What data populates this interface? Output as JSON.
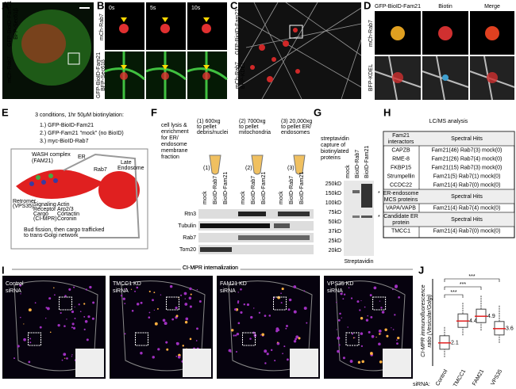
{
  "panels": {
    "A": {
      "letter": "A",
      "labels": [
        "mCh-Rab7",
        "GFP-BioID-Fam21",
        "BFP-Sec61β"
      ]
    },
    "B": {
      "letter": "B",
      "times": [
        "0s",
        "5s",
        "10s"
      ],
      "row_labels": [
        "mCh-Rab7",
        "GFP-BioID-Fam21",
        "BFP-Sec61β"
      ]
    },
    "C": {
      "letter": "C",
      "labels": [
        "mCh-Rab7",
        "GFP-BioID-Fam21",
        "BFP-KDEL"
      ]
    },
    "D": {
      "letter": "D",
      "columns": [
        "GFP-BioID-Fam21",
        "Biotin",
        "Merge"
      ],
      "row_labels": [
        "mCh-Rab7",
        "BFP-KDEL"
      ]
    },
    "E": {
      "letter": "E",
      "heading": "3 conditions, 1hr 50μM biotinylation:",
      "conditions": [
        "1.) GFP-BioID-Fam21",
        "2.) GFP-Fam21 \"mock\" (no BioID)",
        "3.) myc-BioID-Rab7"
      ],
      "diagram": {
        "wash": "WASH complex",
        "fam21": "(FAM21)",
        "er": "ER",
        "rab7": "Rab7",
        "late": [
          "Late",
          "Endosome"
        ],
        "retromer": [
          "Retromer",
          "(VPS35)"
        ],
        "cargo": [
          "Signaling",
          "Receptor",
          "Cargo",
          "(CI-MPR)"
        ],
        "actin": [
          "Actin",
          "Arp2/3",
          "Cortactin",
          "Coronin"
        ],
        "bud": [
          "Bud fission, then cargo trafficked",
          "to trans-Golgi network"
        ]
      }
    },
    "F": {
      "letter": "F",
      "lysis": [
        "cell lysis &",
        "enrichment",
        "for ER/",
        "endosome",
        "membrane",
        "fraction"
      ],
      "spins": [
        [
          "(1) 600xg",
          "to pellet",
          "debris/nuclei"
        ],
        [
          "(2) 7000xg",
          "to pellet",
          "mitochondria"
        ],
        [
          "(3) 20,000xg",
          "to pellet ER/",
          "endosomes"
        ]
      ],
      "tubes": [
        "(1)",
        "(2)",
        "(3)"
      ],
      "lanes": [
        "mock",
        "BioID-Rab7",
        "BioID-Fam21"
      ],
      "blots": [
        "Rtn3",
        "Tubulin",
        "Rab7",
        "Tom20"
      ]
    },
    "G": {
      "letter": "G",
      "capture": [
        "streptavidin",
        "capture of",
        "biotinylated",
        "proteins"
      ],
      "lanes": [
        "mock",
        "BioID-Rab7",
        "BioID-Fam21"
      ],
      "markers": [
        "250kD",
        "150kD",
        "100kD",
        "75kD",
        "50kD",
        "37kD",
        "25kD",
        "20kD"
      ],
      "stars": [
        "*",
        "*"
      ],
      "blot": "Streptavidin"
    },
    "H": {
      "letter": "H",
      "title": "LC/MS analysis",
      "sections": [
        {
          "header": [
            [
              "Fam21",
              "interactors"
            ],
            "Spectral Hits"
          ],
          "rows": [
            [
              "CAPZB",
              "Fam21(46) Rab7(3) mock(0)"
            ],
            [
              "RME-8",
              "Fam21(26) Rab7(4) mock(0)"
            ],
            [
              "FKBP15",
              "Fam21(15) Rab7(3) mock(0)"
            ],
            [
              "Strumpellin",
              "Fam21(5) Rab7(1) mock(0)"
            ],
            [
              "CCDC22",
              "Fam21(4) Rab7(0) mock(0)"
            ]
          ]
        },
        {
          "header": [
            [
              "ER-endosome",
              "MCS proteins"
            ],
            "Spectral Hits"
          ],
          "rows": [
            [
              "VAPA/VAPB",
              "Fam21(4) Rab7(4) mock(0)"
            ]
          ]
        },
        {
          "header": [
            [
              "Candidate ER",
              "protein"
            ],
            "Spectral Hits"
          ],
          "rows": [
            [
              "TMCC1",
              "Fam21(4)  Rab7(0) mock(0)"
            ]
          ]
        }
      ]
    },
    "I": {
      "letter": "I",
      "title": "CI-MPR internalization",
      "conditions": [
        [
          "Control",
          "siRNA"
        ],
        [
          "TMCC1 KD",
          "siRNA"
        ],
        [
          "FAM21 KD",
          "siRNA"
        ],
        [
          "VPS35 KD",
          "siRNA"
        ]
      ]
    },
    "J": {
      "letter": "J",
      "ylabel": [
        "CI-MPR immunofluorescence",
        "ratio (Vesicular/Golgi)"
      ],
      "stars": [
        "***",
        "***",
        "***"
      ],
      "xlabel": "siRNA:",
      "categories": [
        "Control",
        "TMCC1",
        "FAM21",
        "VPS35"
      ],
      "medians": [
        2.1,
        4.4,
        4.9,
        3.6
      ]
    }
  }
}
